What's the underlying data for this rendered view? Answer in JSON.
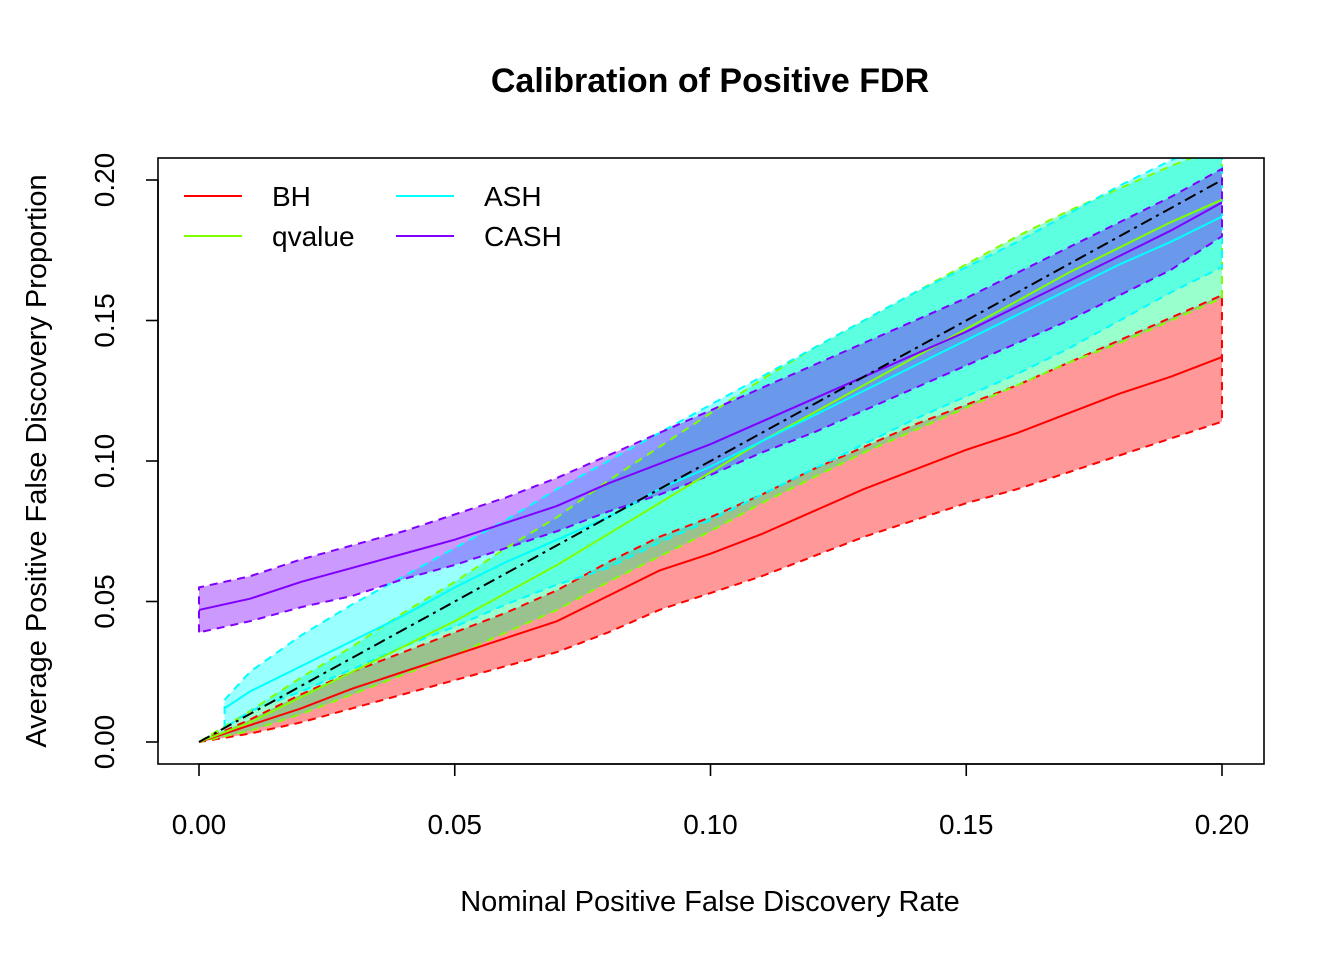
{
  "chart_data": {
    "type": "line",
    "title": "Calibration of Positive FDR",
    "xlabel": "Nominal Positive False Discovery Rate",
    "ylabel": "Average Positive False Discovery Proportion",
    "xlim": [
      0,
      0.2
    ],
    "ylim": [
      0,
      0.2
    ],
    "x_ticks": [
      "0.00",
      "0.05",
      "0.10",
      "0.15",
      "0.20"
    ],
    "y_ticks": [
      "0.00",
      "0.05",
      "0.10",
      "0.15",
      "0.20"
    ],
    "grid": false,
    "legend_position": "top-left",
    "reference_line": {
      "x": [
        0,
        0.2
      ],
      "y": [
        0,
        0.2
      ],
      "color": "#000000"
    },
    "series": [
      {
        "name": "BH",
        "color": "#ff0000",
        "fill": "#ff000066",
        "x": [
          0.0,
          0.01,
          0.02,
          0.03,
          0.04,
          0.05,
          0.06,
          0.07,
          0.08,
          0.09,
          0.1,
          0.11,
          0.12,
          0.13,
          0.14,
          0.15,
          0.16,
          0.17,
          0.18,
          0.19,
          0.2
        ],
        "y": [
          0.0,
          0.006,
          0.012,
          0.019,
          0.025,
          0.031,
          0.037,
          0.043,
          0.052,
          0.061,
          0.067,
          0.074,
          0.082,
          0.09,
          0.097,
          0.104,
          0.11,
          0.117,
          0.124,
          0.13,
          0.137
        ],
        "lower": [
          0.0,
          0.003,
          0.007,
          0.012,
          0.017,
          0.022,
          0.027,
          0.032,
          0.039,
          0.047,
          0.053,
          0.059,
          0.066,
          0.073,
          0.079,
          0.085,
          0.09,
          0.096,
          0.102,
          0.108,
          0.114
        ],
        "upper": [
          0.0,
          0.008,
          0.017,
          0.025,
          0.032,
          0.039,
          0.046,
          0.054,
          0.064,
          0.073,
          0.08,
          0.088,
          0.097,
          0.105,
          0.113,
          0.12,
          0.127,
          0.135,
          0.143,
          0.151,
          0.159
        ]
      },
      {
        "name": "qvalue",
        "color": "#80ff00",
        "fill": "#00ff7f66",
        "x": [
          0.0,
          0.01,
          0.02,
          0.03,
          0.04,
          0.05,
          0.06,
          0.07,
          0.08,
          0.09,
          0.1,
          0.11,
          0.12,
          0.13,
          0.14,
          0.15,
          0.16,
          0.17,
          0.18,
          0.19,
          0.2
        ],
        "y": [
          0.0,
          0.007,
          0.016,
          0.025,
          0.034,
          0.043,
          0.053,
          0.063,
          0.074,
          0.085,
          0.096,
          0.107,
          0.117,
          0.127,
          0.137,
          0.147,
          0.157,
          0.167,
          0.176,
          0.185,
          0.193
        ],
        "lower": [
          0.0,
          0.004,
          0.01,
          0.017,
          0.024,
          0.031,
          0.039,
          0.047,
          0.057,
          0.066,
          0.075,
          0.085,
          0.094,
          0.103,
          0.111,
          0.119,
          0.127,
          0.135,
          0.142,
          0.15,
          0.158
        ],
        "upper": [
          0.0,
          0.011,
          0.023,
          0.034,
          0.046,
          0.057,
          0.069,
          0.08,
          0.093,
          0.105,
          0.117,
          0.129,
          0.14,
          0.15,
          0.16,
          0.17,
          0.18,
          0.189,
          0.197,
          0.205,
          0.212
        ]
      },
      {
        "name": "ASH",
        "color": "#00ffff",
        "fill": "#00ffff66",
        "x": [
          0.005,
          0.01,
          0.02,
          0.03,
          0.04,
          0.05,
          0.06,
          0.07,
          0.08,
          0.09,
          0.1,
          0.11,
          0.12,
          0.13,
          0.14,
          0.15,
          0.16,
          0.17,
          0.18,
          0.19,
          0.2
        ],
        "y": [
          0.012,
          0.018,
          0.027,
          0.036,
          0.045,
          0.055,
          0.064,
          0.072,
          0.08,
          0.09,
          0.098,
          0.107,
          0.116,
          0.125,
          0.134,
          0.143,
          0.152,
          0.161,
          0.17,
          0.178,
          0.187
        ],
        "lower": [
          0.005,
          0.011,
          0.018,
          0.026,
          0.034,
          0.041,
          0.049,
          0.056,
          0.062,
          0.071,
          0.079,
          0.088,
          0.097,
          0.106,
          0.115,
          0.123,
          0.131,
          0.14,
          0.15,
          0.16,
          0.169
        ],
        "upper": [
          0.015,
          0.025,
          0.038,
          0.049,
          0.059,
          0.069,
          0.079,
          0.09,
          0.1,
          0.11,
          0.12,
          0.13,
          0.14,
          0.15,
          0.16,
          0.169,
          0.178,
          0.188,
          0.198,
          0.207,
          0.215
        ]
      },
      {
        "name": "CASH",
        "color": "#7f00ff",
        "fill": "#7f00ff66",
        "x": [
          0.0,
          0.01,
          0.02,
          0.03,
          0.04,
          0.05,
          0.06,
          0.07,
          0.08,
          0.09,
          0.1,
          0.11,
          0.12,
          0.13,
          0.14,
          0.15,
          0.16,
          0.17,
          0.18,
          0.19,
          0.2
        ],
        "y": [
          0.047,
          0.051,
          0.057,
          0.062,
          0.067,
          0.072,
          0.078,
          0.084,
          0.092,
          0.099,
          0.106,
          0.114,
          0.122,
          0.13,
          0.138,
          0.146,
          0.155,
          0.164,
          0.173,
          0.182,
          0.192
        ],
        "lower": [
          0.039,
          0.043,
          0.048,
          0.052,
          0.058,
          0.063,
          0.069,
          0.075,
          0.082,
          0.088,
          0.095,
          0.103,
          0.11,
          0.118,
          0.126,
          0.134,
          0.142,
          0.15,
          0.159,
          0.168,
          0.18
        ],
        "upper": [
          0.055,
          0.059,
          0.065,
          0.07,
          0.075,
          0.081,
          0.087,
          0.094,
          0.102,
          0.11,
          0.118,
          0.126,
          0.134,
          0.142,
          0.15,
          0.158,
          0.167,
          0.176,
          0.185,
          0.194,
          0.204
        ]
      }
    ]
  }
}
